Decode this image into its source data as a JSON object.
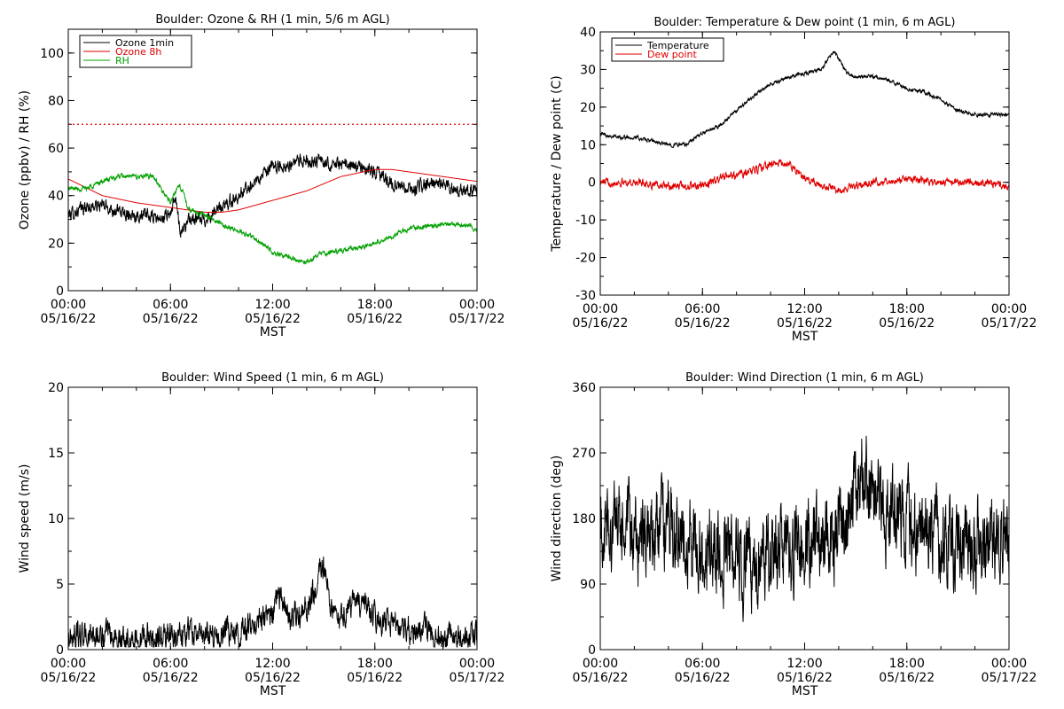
{
  "chart_data": [
    {
      "type": "line",
      "title": "Boulder: Ozone & RH (1 min, 5/6 m AGL)",
      "xlabel": "MST",
      "ylabel": "Ozone (ppbv) / RH (%)",
      "xlim": [
        0,
        24
      ],
      "ylim": [
        0,
        110
      ],
      "yticks": [
        0,
        20,
        40,
        60,
        80,
        100
      ],
      "xticks": [
        {
          "time": "00:00",
          "date": "05/16/22"
        },
        {
          "time": "06:00",
          "date": "05/16/22"
        },
        {
          "time": "12:00",
          "date": "05/16/22"
        },
        {
          "time": "18:00",
          "date": "05/16/22"
        },
        {
          "time": "00:00",
          "date": "05/17/22"
        }
      ],
      "legend_position": "top-left",
      "reference_line": {
        "y": 70,
        "color": "#e00000",
        "style": "dotted"
      },
      "series": [
        {
          "name": "Ozone 1min",
          "color": "#000000",
          "noise": 2.2,
          "x": [
            0,
            1,
            2,
            3,
            4,
            5,
            5.5,
            6,
            6.3,
            6.6,
            6.9,
            7.2,
            8,
            9,
            10,
            11,
            12,
            13,
            14,
            15,
            16,
            17,
            18,
            19,
            20,
            21,
            22,
            23,
            24
          ],
          "y": [
            32,
            35,
            36,
            33,
            32,
            31,
            30,
            33,
            38,
            25,
            28,
            30,
            30,
            35,
            40,
            46,
            52,
            53,
            55,
            54,
            53,
            52,
            50,
            45,
            42,
            45,
            45,
            42,
            43
          ]
        },
        {
          "name": "Ozone 8h",
          "color": "#e00000",
          "noise": 0,
          "x": [
            0,
            2,
            4,
            6,
            8,
            9,
            10,
            12,
            14,
            16,
            18,
            19,
            20,
            22,
            24
          ],
          "y": [
            47,
            40,
            37,
            35,
            33,
            33,
            34,
            38,
            42,
            48,
            51,
            51,
            50,
            48,
            46
          ]
        },
        {
          "name": "RH",
          "color": "#00a000",
          "noise": 0.8,
          "x": [
            0,
            1,
            2,
            3,
            4,
            5,
            5.5,
            6,
            6.5,
            6.8,
            7,
            7.5,
            8,
            9,
            10,
            11,
            12,
            13,
            14,
            15,
            16,
            17,
            18,
            19,
            20,
            21,
            22,
            23,
            24
          ],
          "y": [
            43,
            43,
            46,
            48,
            48,
            48,
            42,
            37,
            45,
            40,
            35,
            33,
            32,
            28,
            25,
            22,
            16,
            14,
            12,
            16,
            17,
            18,
            20,
            23,
            26,
            27,
            28,
            28,
            26
          ]
        }
      ]
    },
    {
      "type": "line",
      "title": "Boulder: Temperature & Dew point (1 min, 6 m AGL)",
      "xlabel": "MST",
      "ylabel": "Temperature / Dew point (C)",
      "xlim": [
        0,
        24
      ],
      "ylim": [
        -30,
        40
      ],
      "yticks": [
        -30,
        -20,
        -10,
        0,
        10,
        20,
        30,
        40
      ],
      "xticks": [
        {
          "time": "00:00",
          "date": "05/16/22"
        },
        {
          "time": "06:00",
          "date": "05/16/22"
        },
        {
          "time": "12:00",
          "date": "05/16/22"
        },
        {
          "time": "18:00",
          "date": "05/16/22"
        },
        {
          "time": "00:00",
          "date": "05/17/22"
        }
      ],
      "legend_position": "top-left",
      "series": [
        {
          "name": "Temperature",
          "color": "#000000",
          "noise": 0.4,
          "x": [
            0,
            1,
            2,
            3,
            4,
            5,
            6,
            7,
            8,
            9,
            10,
            11,
            12,
            13,
            13.7,
            14.5,
            15,
            16,
            17,
            18,
            19,
            20,
            21,
            22,
            23,
            24
          ],
          "y": [
            13,
            12,
            12,
            11,
            10,
            10,
            13,
            15,
            19,
            23,
            26,
            28,
            29,
            30,
            35,
            29,
            28,
            28,
            27,
            25,
            24,
            22,
            19,
            18,
            18,
            18
          ]
        },
        {
          "name": "Dew point",
          "color": "#e00000",
          "noise": 0.8,
          "x": [
            0,
            2,
            4,
            6,
            7,
            8,
            9,
            10,
            11,
            12,
            13,
            14,
            15,
            16,
            18,
            20,
            22,
            24
          ],
          "y": [
            0,
            0,
            -1,
            -1,
            1,
            2,
            3,
            5,
            5,
            1,
            -1,
            -2,
            -1,
            0,
            1,
            0,
            0,
            -1
          ]
        }
      ]
    },
    {
      "type": "line",
      "title": "Boulder: Wind Speed (1 min, 6 m AGL)",
      "xlabel": "MST",
      "ylabel": "Wind speed (m/s)",
      "xlim": [
        0,
        24
      ],
      "ylim": [
        0,
        20
      ],
      "yticks": [
        0,
        5,
        10,
        15,
        20
      ],
      "xticks": [
        {
          "time": "00:00",
          "date": "05/16/22"
        },
        {
          "time": "06:00",
          "date": "05/16/22"
        },
        {
          "time": "12:00",
          "date": "05/16/22"
        },
        {
          "time": "18:00",
          "date": "05/16/22"
        },
        {
          "time": "00:00",
          "date": "05/17/22"
        }
      ],
      "series": [
        {
          "name": "",
          "color": "#000000",
          "noise": 0.8,
          "x": [
            0,
            2,
            4,
            6,
            7,
            8,
            9,
            10,
            11,
            12,
            12.5,
            13,
            14,
            15,
            15.5,
            16,
            17,
            17.5,
            18,
            19,
            20,
            21,
            22,
            23,
            24
          ],
          "y": [
            1,
            1,
            0.8,
            1,
            1.5,
            1,
            1.2,
            1.5,
            2,
            3,
            4,
            2.5,
            3,
            6.5,
            3,
            2.5,
            3.5,
            3.5,
            2.5,
            2,
            1.5,
            1.5,
            1,
            1,
            1
          ]
        }
      ]
    },
    {
      "type": "line",
      "title": "Boulder: Wind Direction (1 min, 6 m AGL)",
      "xlabel": "MST",
      "ylabel": "Wind direction (deg)",
      "xlim": [
        0,
        24
      ],
      "ylim": [
        0,
        360
      ],
      "yticks": [
        0,
        90,
        180,
        270,
        360
      ],
      "xticks": [
        {
          "time": "00:00",
          "date": "05/16/22"
        },
        {
          "time": "06:00",
          "date": "05/16/22"
        },
        {
          "time": "12:00",
          "date": "05/16/22"
        },
        {
          "time": "18:00",
          "date": "05/16/22"
        },
        {
          "time": "00:00",
          "date": "05/17/22"
        }
      ],
      "series": [
        {
          "name": "",
          "color": "#000000",
          "noise": 45,
          "x": [
            0,
            1,
            2,
            3,
            4,
            5,
            6,
            7,
            8,
            9,
            10,
            11,
            12,
            13,
            14,
            15,
            15.5,
            16,
            17,
            18,
            19,
            20,
            21,
            22,
            23,
            24
          ],
          "y": [
            160,
            170,
            150,
            160,
            170,
            160,
            130,
            140,
            120,
            120,
            140,
            130,
            150,
            150,
            160,
            210,
            250,
            230,
            175,
            175,
            160,
            150,
            140,
            150,
            160,
            150
          ]
        }
      ]
    }
  ]
}
